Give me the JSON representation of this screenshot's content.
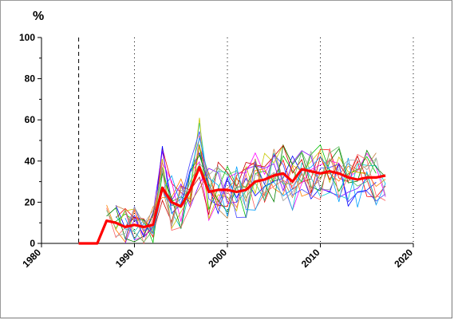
{
  "chart_data": {
    "type": "line",
    "title": "",
    "xlabel": "",
    "ylabel": "%",
    "xlim": [
      1980,
      2020
    ],
    "ylim": [
      0,
      100
    ],
    "x_ticks": [
      "1980",
      "1990",
      "2000",
      "2010",
      "2020"
    ],
    "y_ticks": [
      "0",
      "20",
      "40",
      "60",
      "80",
      "100"
    ],
    "grid": "vertical dotted",
    "reference_line_x": 1984,
    "colors": {
      "mean": "#ff0000",
      "individual": [
        "#ff0000",
        "#0000ff",
        "#00c000",
        "#ff00ff",
        "#00cccc",
        "#ff8000",
        "#c8c800",
        "#8000ff",
        "#008000",
        "#cc0000",
        "#4040ff",
        "#ff6060",
        "#60c060",
        "#c08040",
        "#00a0ff",
        "#a0a0a0"
      ]
    },
    "mean_series": {
      "x": [
        1984,
        1985,
        1986,
        1987,
        1988,
        1989,
        1990,
        1991,
        1992,
        1993,
        1994,
        1995,
        1996,
        1997,
        1998,
        1999,
        2000,
        2001,
        2002,
        2003,
        2004,
        2005,
        2006,
        2007,
        2008,
        2009,
        2010,
        2011,
        2012,
        2013,
        2014,
        2015,
        2016,
        2017
      ],
      "y": [
        0,
        0,
        0,
        11,
        10,
        8,
        9,
        8,
        9,
        27,
        20,
        18,
        26,
        37,
        25,
        26,
        26,
        25,
        26,
        30,
        31,
        33,
        34,
        30,
        36,
        35,
        34,
        35,
        34,
        32,
        31,
        32,
        32,
        33
      ]
    },
    "individual_series_summary": "About sixteen thin coloured lines spanning 1987-2017, roughly between 0 and 60 %"
  }
}
